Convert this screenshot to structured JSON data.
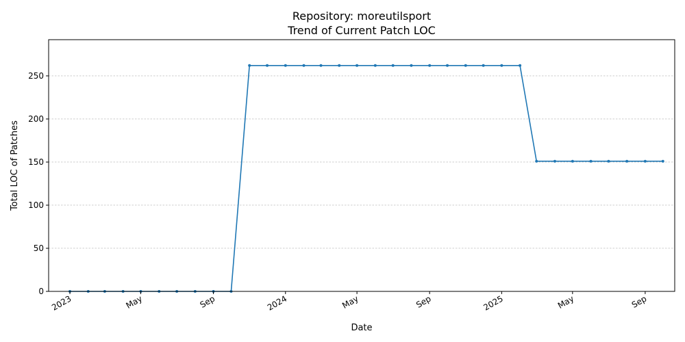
{
  "chart_data": {
    "type": "line",
    "title": "Repository: moreutilsport",
    "subtitle": "Trend of Current Patch LOC",
    "xlabel": "Date",
    "ylabel": "Total LOC of Patches",
    "ylim": [
      0,
      292
    ],
    "xlim": [
      "2022-11-26",
      "2025-10-21"
    ],
    "y_ticks": [
      0,
      50,
      100,
      150,
      200,
      250
    ],
    "x_ticks": [
      {
        "date": "2023-01-01",
        "label": "2023"
      },
      {
        "date": "2023-05-01",
        "label": "May"
      },
      {
        "date": "2023-09-01",
        "label": "Sep"
      },
      {
        "date": "2024-01-01",
        "label": "2024"
      },
      {
        "date": "2024-05-01",
        "label": "May"
      },
      {
        "date": "2024-09-01",
        "label": "Sep"
      },
      {
        "date": "2025-01-01",
        "label": "2025"
      },
      {
        "date": "2025-05-01",
        "label": "May"
      },
      {
        "date": "2025-09-01",
        "label": "Sep"
      }
    ],
    "grid": "y-dashed",
    "line_color": "#1f77b4",
    "x": [
      "2023-01-01",
      "2023-02-01",
      "2023-03-01",
      "2023-04-01",
      "2023-05-01",
      "2023-06-01",
      "2023-07-01",
      "2023-08-01",
      "2023-09-01",
      "2023-10-01",
      "2023-11-01",
      "2023-12-01",
      "2024-01-01",
      "2024-02-01",
      "2024-03-01",
      "2024-04-01",
      "2024-05-01",
      "2024-06-01",
      "2024-07-01",
      "2024-08-01",
      "2024-09-01",
      "2024-10-01",
      "2024-11-01",
      "2024-12-01",
      "2025-01-01",
      "2025-02-01",
      "2025-03-01",
      "2025-04-01",
      "2025-05-01",
      "2025-06-01",
      "2025-07-01",
      "2025-08-01",
      "2025-09-01",
      "2025-10-01"
    ],
    "series": [
      {
        "name": "",
        "values": [
          0,
          0,
          0,
          0,
          0,
          0,
          0,
          0,
          0,
          0,
          262,
          262,
          262,
          262,
          262,
          262,
          262,
          262,
          262,
          262,
          262,
          262,
          262,
          262,
          262,
          262,
          151,
          151,
          151,
          151,
          151,
          151,
          151,
          151
        ]
      }
    ]
  }
}
